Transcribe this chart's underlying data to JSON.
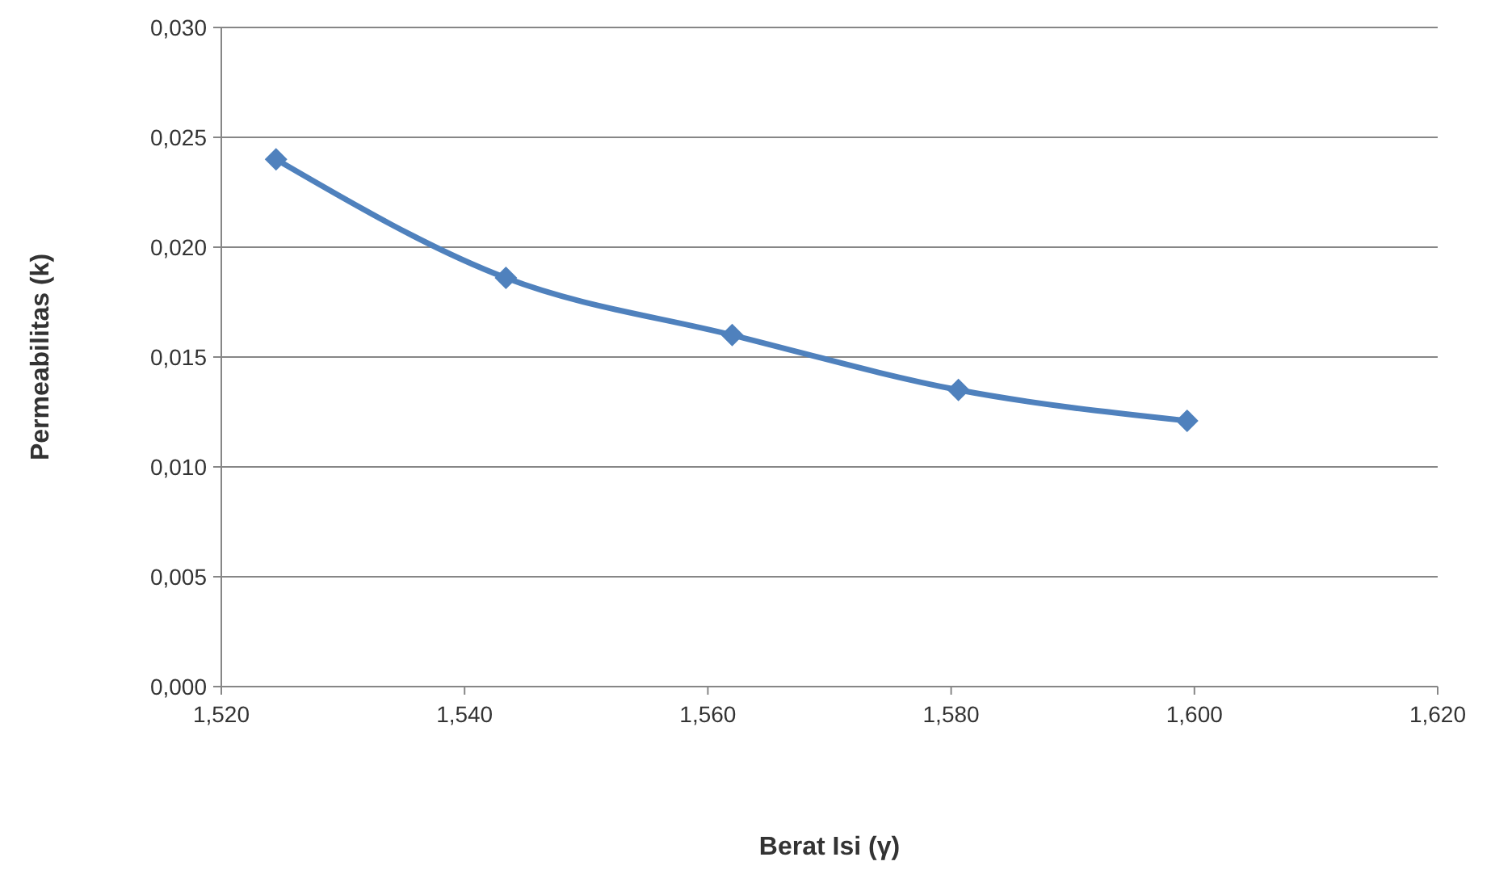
{
  "chart_data": {
    "type": "line",
    "xlabel": "Berat Isi (γ)",
    "ylabel": "Permeabilitas (k)",
    "x": [
      1.5245,
      1.5434,
      1.562,
      1.5806,
      1.5994
    ],
    "series": [
      {
        "color": "#4f81bd",
        "values": [
          0.024,
          0.0186,
          0.016,
          0.0135,
          0.0121
        ]
      }
    ],
    "xlim": [
      1.52,
      1.62
    ],
    "xticks": [
      {
        "value": 1.52,
        "label": "1,520"
      },
      {
        "value": 1.54,
        "label": "1,540"
      },
      {
        "value": 1.56,
        "label": "1,560"
      },
      {
        "value": 1.58,
        "label": "1,580"
      },
      {
        "value": 1.6,
        "label": "1,600"
      },
      {
        "value": 1.62,
        "label": "1,620"
      }
    ],
    "ylim": [
      0,
      0.03
    ],
    "yticks": [
      {
        "value": 0,
        "label": "0,000"
      },
      {
        "value": 0.005,
        "label": "0,005"
      },
      {
        "value": 0.01,
        "label": "0,010"
      },
      {
        "value": 0.015,
        "label": "0,015"
      },
      {
        "value": 0.02,
        "label": "0,020"
      },
      {
        "value": 0.025,
        "label": "0,025"
      },
      {
        "value": 0.03,
        "label": "0,030"
      }
    ],
    "grid": "y",
    "marker": "diamond",
    "line_style": "solid"
  }
}
